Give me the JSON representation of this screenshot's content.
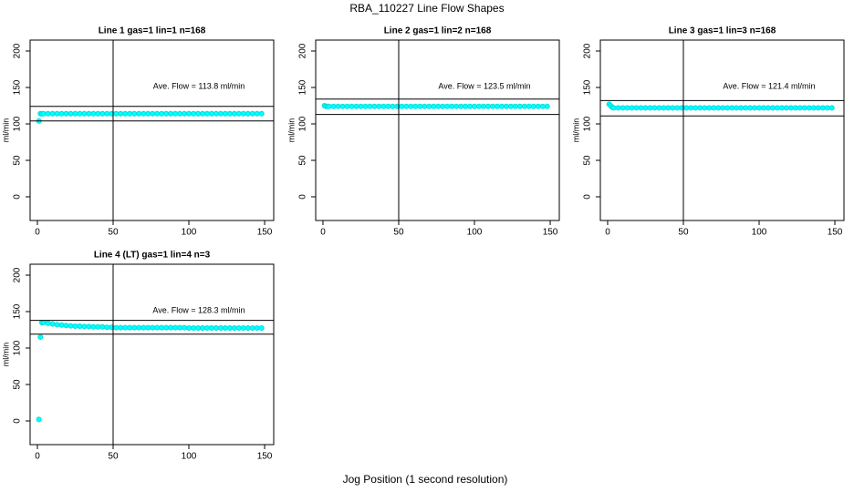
{
  "title": "RBA_110227  Line Flow Shapes",
  "xlabel": "Jog Position (1 second resolution)",
  "chart_data": [
    {
      "type": "scatter",
      "title": "Line 1 gas=1 lin=1 n=168",
      "annotation": "Ave. Flow =  113.8  ml/min",
      "ylabel": "ml/min",
      "color": "#00ffff",
      "x": [
        1,
        2,
        3,
        4,
        7,
        10,
        13,
        16,
        19,
        22,
        25,
        28,
        31,
        34,
        37,
        40,
        43,
        46,
        49,
        52,
        55,
        58,
        61,
        64,
        67,
        70,
        73,
        76,
        79,
        82,
        85,
        88,
        91,
        94,
        97,
        100,
        103,
        106,
        109,
        112,
        115,
        118,
        121,
        124,
        127,
        130,
        133,
        136,
        139,
        142,
        145,
        148
      ],
      "values": [
        104,
        114,
        114,
        114,
        114,
        114,
        114,
        114,
        114,
        114,
        114,
        114,
        114,
        114,
        114,
        114,
        114,
        114,
        114,
        114,
        114,
        114,
        114,
        114,
        114,
        114,
        114,
        114,
        114,
        114,
        114,
        114,
        114,
        114,
        114,
        114,
        114,
        114,
        114,
        114,
        114,
        114,
        114,
        114,
        114,
        114,
        114,
        114,
        114,
        114,
        114,
        114
      ],
      "hlines": [
        124,
        104
      ],
      "vline": 50,
      "xlim": [
        -4.8,
        156
      ],
      "ylim": [
        -32.5,
        215
      ],
      "xticks": [
        0,
        50,
        100,
        150
      ],
      "yticks": [
        0,
        50,
        100,
        150,
        200
      ]
    },
    {
      "type": "scatter",
      "title": "Line 2 gas=1 lin=2 n=168",
      "annotation": "Ave. Flow =  123.5  ml/min",
      "ylabel": "ml/min",
      "color": "#00ffff",
      "x": [
        1,
        2,
        3,
        4,
        7,
        10,
        13,
        16,
        19,
        22,
        25,
        28,
        31,
        34,
        37,
        40,
        43,
        46,
        49,
        52,
        55,
        58,
        61,
        64,
        67,
        70,
        73,
        76,
        79,
        82,
        85,
        88,
        91,
        94,
        97,
        100,
        103,
        106,
        109,
        112,
        115,
        118,
        121,
        124,
        127,
        130,
        133,
        136,
        139,
        142,
        145,
        148
      ],
      "values": [
        125,
        124,
        124,
        124,
        124,
        124,
        124,
        124,
        124,
        124,
        124,
        124,
        124,
        124,
        124,
        124,
        124,
        124,
        124,
        124,
        124,
        124,
        124,
        124,
        124,
        124,
        124,
        124,
        124,
        124,
        124,
        124,
        124,
        124,
        124,
        124,
        124,
        124,
        124,
        124,
        124,
        124,
        124,
        124,
        124,
        124,
        124,
        124,
        124,
        124,
        124,
        124
      ],
      "hlines": [
        134,
        113
      ],
      "vline": 50,
      "xlim": [
        -4.8,
        156
      ],
      "ylim": [
        -32.5,
        215
      ],
      "xticks": [
        0,
        50,
        100,
        150
      ],
      "yticks": [
        0,
        50,
        100,
        150,
        200
      ]
    },
    {
      "type": "scatter",
      "title": "Line 3 gas=1 lin=3 n=168",
      "annotation": "Ave. Flow =  121.4  ml/min",
      "ylabel": "ml/min",
      "color": "#00ffff",
      "x": [
        1,
        2,
        3,
        4,
        7,
        10,
        13,
        16,
        19,
        22,
        25,
        28,
        31,
        34,
        37,
        40,
        43,
        46,
        49,
        52,
        55,
        58,
        61,
        64,
        67,
        70,
        73,
        76,
        79,
        82,
        85,
        88,
        91,
        94,
        97,
        100,
        103,
        106,
        109,
        112,
        115,
        118,
        121,
        124,
        127,
        130,
        133,
        136,
        139,
        142,
        145,
        148
      ],
      "values": [
        127,
        125,
        123,
        122,
        122,
        122,
        122,
        122,
        122,
        122,
        122,
        122,
        122,
        122,
        122,
        122,
        122,
        122,
        122,
        122,
        122,
        122,
        122,
        122,
        122,
        122,
        122,
        122,
        122,
        122,
        122,
        122,
        122,
        122,
        122,
        122,
        122,
        122,
        122,
        122,
        122,
        122,
        122,
        122,
        122,
        122,
        122,
        122,
        122,
        122,
        122,
        122
      ],
      "hlines": [
        132,
        111
      ],
      "vline": 50,
      "xlim": [
        -4.8,
        156
      ],
      "ylim": [
        -32.5,
        215
      ],
      "xticks": [
        0,
        50,
        100,
        150
      ],
      "yticks": [
        0,
        50,
        100,
        150,
        200
      ]
    },
    {
      "type": "scatter",
      "title": "Line 4 (LT) gas=1 lin=4 n=3",
      "annotation": "Ave. Flow =  128.3  ml/min",
      "ylabel": "ml/min",
      "color": "#00ffff",
      "x": [
        1,
        2,
        3,
        4,
        7,
        10,
        13,
        16,
        19,
        22,
        25,
        28,
        31,
        34,
        37,
        40,
        43,
        46,
        49,
        52,
        55,
        58,
        61,
        64,
        67,
        70,
        73,
        76,
        79,
        82,
        85,
        88,
        91,
        94,
        97,
        100,
        103,
        106,
        109,
        112,
        115,
        118,
        121,
        124,
        127,
        130,
        133,
        136,
        139,
        142,
        145,
        148
      ],
      "values": [
        2,
        115,
        135,
        135,
        134,
        133,
        132,
        131.5,
        131,
        130.5,
        130,
        130,
        129.5,
        129.5,
        129,
        129,
        129,
        128.5,
        128.5,
        128,
        128,
        128,
        128,
        128,
        128,
        128,
        128,
        128,
        128,
        128,
        128,
        128,
        128,
        128,
        128,
        127.5,
        127.5,
        127.5,
        127.5,
        127.5,
        127.5,
        127.5,
        127.5,
        127.5,
        127.5,
        127.5,
        127.5,
        127.5,
        127.5,
        127.5,
        127.5,
        127.5
      ],
      "hlines": [
        138,
        119
      ],
      "vline": 50,
      "xlim": [
        -4.8,
        156
      ],
      "ylim": [
        -32.5,
        215
      ],
      "xticks": [
        0,
        50,
        100,
        150
      ],
      "yticks": [
        0,
        50,
        100,
        150,
        200
      ]
    }
  ]
}
